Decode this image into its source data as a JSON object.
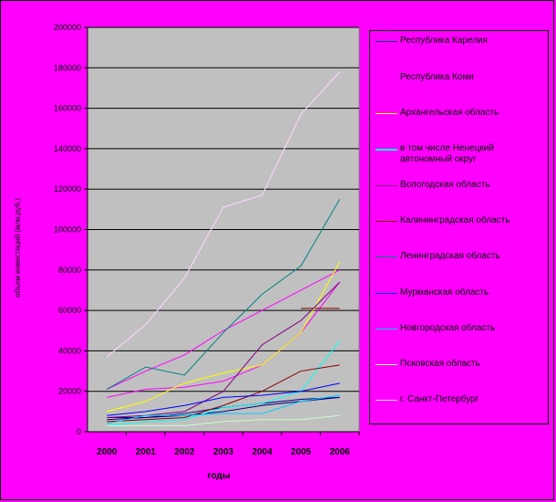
{
  "chart_data": {
    "type": "line",
    "title": "",
    "xlabel": "годы",
    "ylabel": "объем инвестиций (млн.руб.)",
    "x": [
      "2000",
      "2001",
      "2002",
      "2003",
      "2004",
      "2005",
      "2006"
    ],
    "ylim": [
      0,
      200000
    ],
    "yticks": [
      "0",
      "20000",
      "40000",
      "60000",
      "80000",
      "100000",
      "120000",
      "140000",
      "160000",
      "180000",
      "200000"
    ],
    "grid": true,
    "legend_position": "right",
    "series": [
      {
        "name": "Республика Карелия",
        "color": "#000080",
        "values": [
          6000,
          7000,
          8000,
          10000,
          13000,
          15000,
          17000
        ]
      },
      {
        "name": "Республика Коми",
        "color": "#ff00ff",
        "values": [
          21000,
          30000,
          38000,
          50000,
          60000,
          70000,
          80000
        ]
      },
      {
        "name": "Архангельская область",
        "color": "#ffff00",
        "values": [
          10000,
          15000,
          24000,
          29000,
          33000,
          49000,
          84000
        ]
      },
      {
        "name": "в том числе Ненецкий автономный округ",
        "color": "#00ffff",
        "values": [
          3000,
          5000,
          6000,
          12000,
          14000,
          20000,
          45000
        ]
      },
      {
        "name": "Вологодская область",
        "color": "#800080",
        "values": [
          7000,
          8000,
          10000,
          20000,
          43000,
          55000,
          74000
        ]
      },
      {
        "name": "Калининградская область",
        "color": "#800000",
        "values": [
          5000,
          6000,
          7000,
          13000,
          20000,
          30000,
          33000
        ]
      },
      {
        "name": "Ленинградская область",
        "color": "#008080",
        "values": [
          21000,
          32000,
          28000,
          49000,
          68000,
          82000,
          115000
        ]
      },
      {
        "name": "Мурманская область",
        "color": "#0000ff",
        "values": [
          8000,
          10000,
          13000,
          17000,
          18000,
          20000,
          24000
        ]
      },
      {
        "name": "Новгородская область",
        "color": "#00ccff",
        "values": [
          4000,
          8000,
          8000,
          9000,
          9000,
          15000,
          18000
        ]
      },
      {
        "name": "Псковская область",
        "color": "#ccffcc",
        "values": [
          3000,
          3000,
          3000,
          5000,
          6000,
          6000,
          8000
        ]
      },
      {
        "name": "г. Санкт-Петербург",
        "color": "#ffccff",
        "values": [
          37000,
          53000,
          76000,
          111000,
          117000,
          157000,
          178000
        ]
      }
    ],
    "extra_segments": [
      {
        "color": "#ccffcc",
        "x": [
          "2000",
          "2001",
          "2002",
          "2003",
          "2004",
          "2005",
          "2006"
        ],
        "values": [
          37000,
          53000,
          76000,
          111000,
          117000,
          157000,
          178000
        ]
      },
      {
        "color": "#ff00ff",
        "x": [
          "2000",
          "2001",
          "2002",
          "2003",
          "2004",
          "2005",
          "2006"
        ],
        "values": [
          17000,
          21000,
          22000,
          25000,
          33000,
          49000,
          74000
        ]
      },
      {
        "color": "#800000",
        "x": [
          "2005",
          "2006"
        ],
        "values": [
          61000,
          61000
        ]
      },
      {
        "color": "#000080",
        "x": [
          "2000",
          "2001",
          "2002",
          "2003",
          "2004",
          "2005",
          "2006"
        ],
        "values": [
          7000,
          7000,
          9000,
          12000,
          14000,
          16000,
          17000
        ]
      }
    ]
  }
}
